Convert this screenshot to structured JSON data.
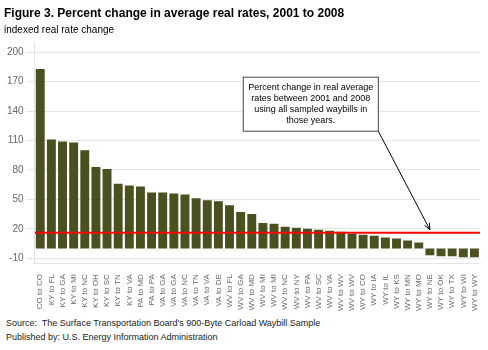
{
  "chart_data": {
    "type": "bar",
    "title": "Figure 3. Percent change in average real rates, 2001 to 2008",
    "ylabel": "indexed real rate change",
    "categories": [
      "CO to CO",
      "KY to FL",
      "KY to GA",
      "KY to MI",
      "KY to NC",
      "KY to OH",
      "KY to SC",
      "KY to TN",
      "KY to VA",
      "PA to MD",
      "PA to PA",
      "VA to GA",
      "VA to GA",
      "VA to NC",
      "VA to TN",
      "VA to VA",
      "VA to DE",
      "WV to FL",
      "WV to GA",
      "WV to MD",
      "WV to MI",
      "WV to MI",
      "WV to NC",
      "WV to NY",
      "WV to PA",
      "WV to SC",
      "WV to VA",
      "WV to WV",
      "WV to WV",
      "WY to CO",
      "WY to IA",
      "WY to IL",
      "WY to KS",
      "WY to MN",
      "WY to MO",
      "WY to NE",
      "WY to OK",
      "WY to TX",
      "WY to WI",
      "WY to WY"
    ],
    "values": [
      183,
      111,
      109,
      108,
      100,
      83,
      81,
      66,
      64,
      63,
      57,
      57,
      56,
      55,
      51,
      49,
      48,
      44,
      37,
      35,
      26,
      25,
      22,
      21,
      20,
      19,
      18,
      17,
      15,
      14,
      13,
      11,
      10,
      8,
      6,
      -7,
      -8,
      -8,
      -9,
      -9
    ],
    "color": "#4a5020",
    "ylim": [
      -15,
      210
    ],
    "yticks": [
      -10,
      20,
      50,
      80,
      110,
      140,
      170,
      200
    ],
    "grid": true,
    "reference_line": {
      "value": 16,
      "color": "red"
    },
    "annotations": [
      {
        "text": "Percent change in real average\nrates between 2001 and 2008\nusing all sampled waybills in\nthose years.",
        "point_index": 35,
        "point_y": 16
      }
    ],
    "source": [
      "Source:  The Surface Transportation Board's 900-Byte Carload Waybill Sample",
      "Published by: U.S. Energy Information Administration"
    ]
  }
}
